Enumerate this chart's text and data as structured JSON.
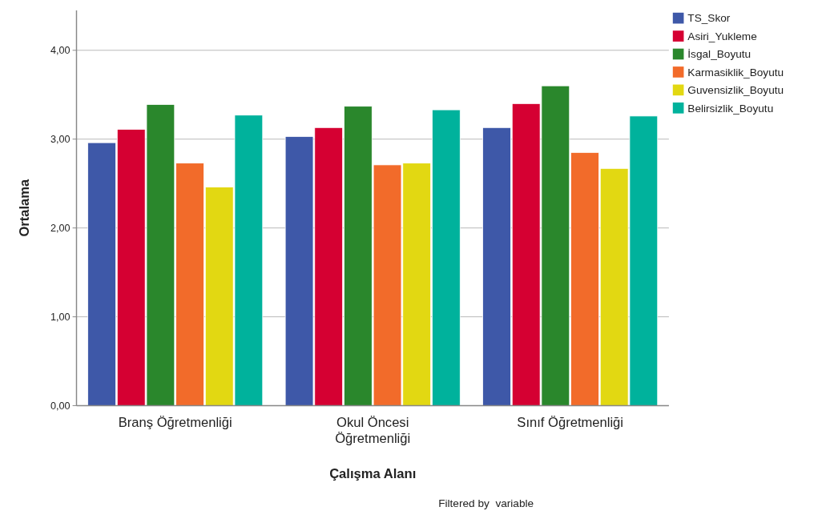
{
  "chart_data": {
    "type": "bar",
    "xlabel": "Çalışma Alanı",
    "ylabel": "Ortalama",
    "categories": [
      "Branş Öğretmenliği",
      "Okul Öncesi Öğretmenliği",
      "Sınıf Öğretmenliği"
    ],
    "series": [
      {
        "name": "TS_Skor",
        "color": "#3e58a8",
        "values": [
          2.96,
          3.03,
          3.13
        ]
      },
      {
        "name": "Asiri_Yukleme",
        "color": "#d50032",
        "values": [
          3.11,
          3.13,
          3.4
        ]
      },
      {
        "name": "İsgal_Boyutu",
        "color": "#2a872c",
        "values": [
          3.39,
          3.37,
          3.6
        ]
      },
      {
        "name": "Karmasiklik_Boyutu",
        "color": "#f26b2a",
        "values": [
          2.73,
          2.71,
          2.85
        ]
      },
      {
        "name": "Guvensizlik_Boyutu",
        "color": "#e2d812",
        "values": [
          2.46,
          2.73,
          2.67
        ]
      },
      {
        "name": "Belirsizlik_Boyutu",
        "color": "#00b29c",
        "values": [
          3.27,
          3.33,
          3.26
        ]
      }
    ],
    "ylim": [
      0,
      4.45
    ],
    "yticks": [
      {
        "value": 0,
        "label": "0,00"
      },
      {
        "value": 1,
        "label": "1,00"
      },
      {
        "value": 2,
        "label": "2,00"
      },
      {
        "value": 3,
        "label": "3,00"
      },
      {
        "value": 4,
        "label": "4,00"
      }
    ],
    "grid": "y",
    "legend": "top right",
    "annotations": [
      "Filtered by  variable"
    ]
  }
}
